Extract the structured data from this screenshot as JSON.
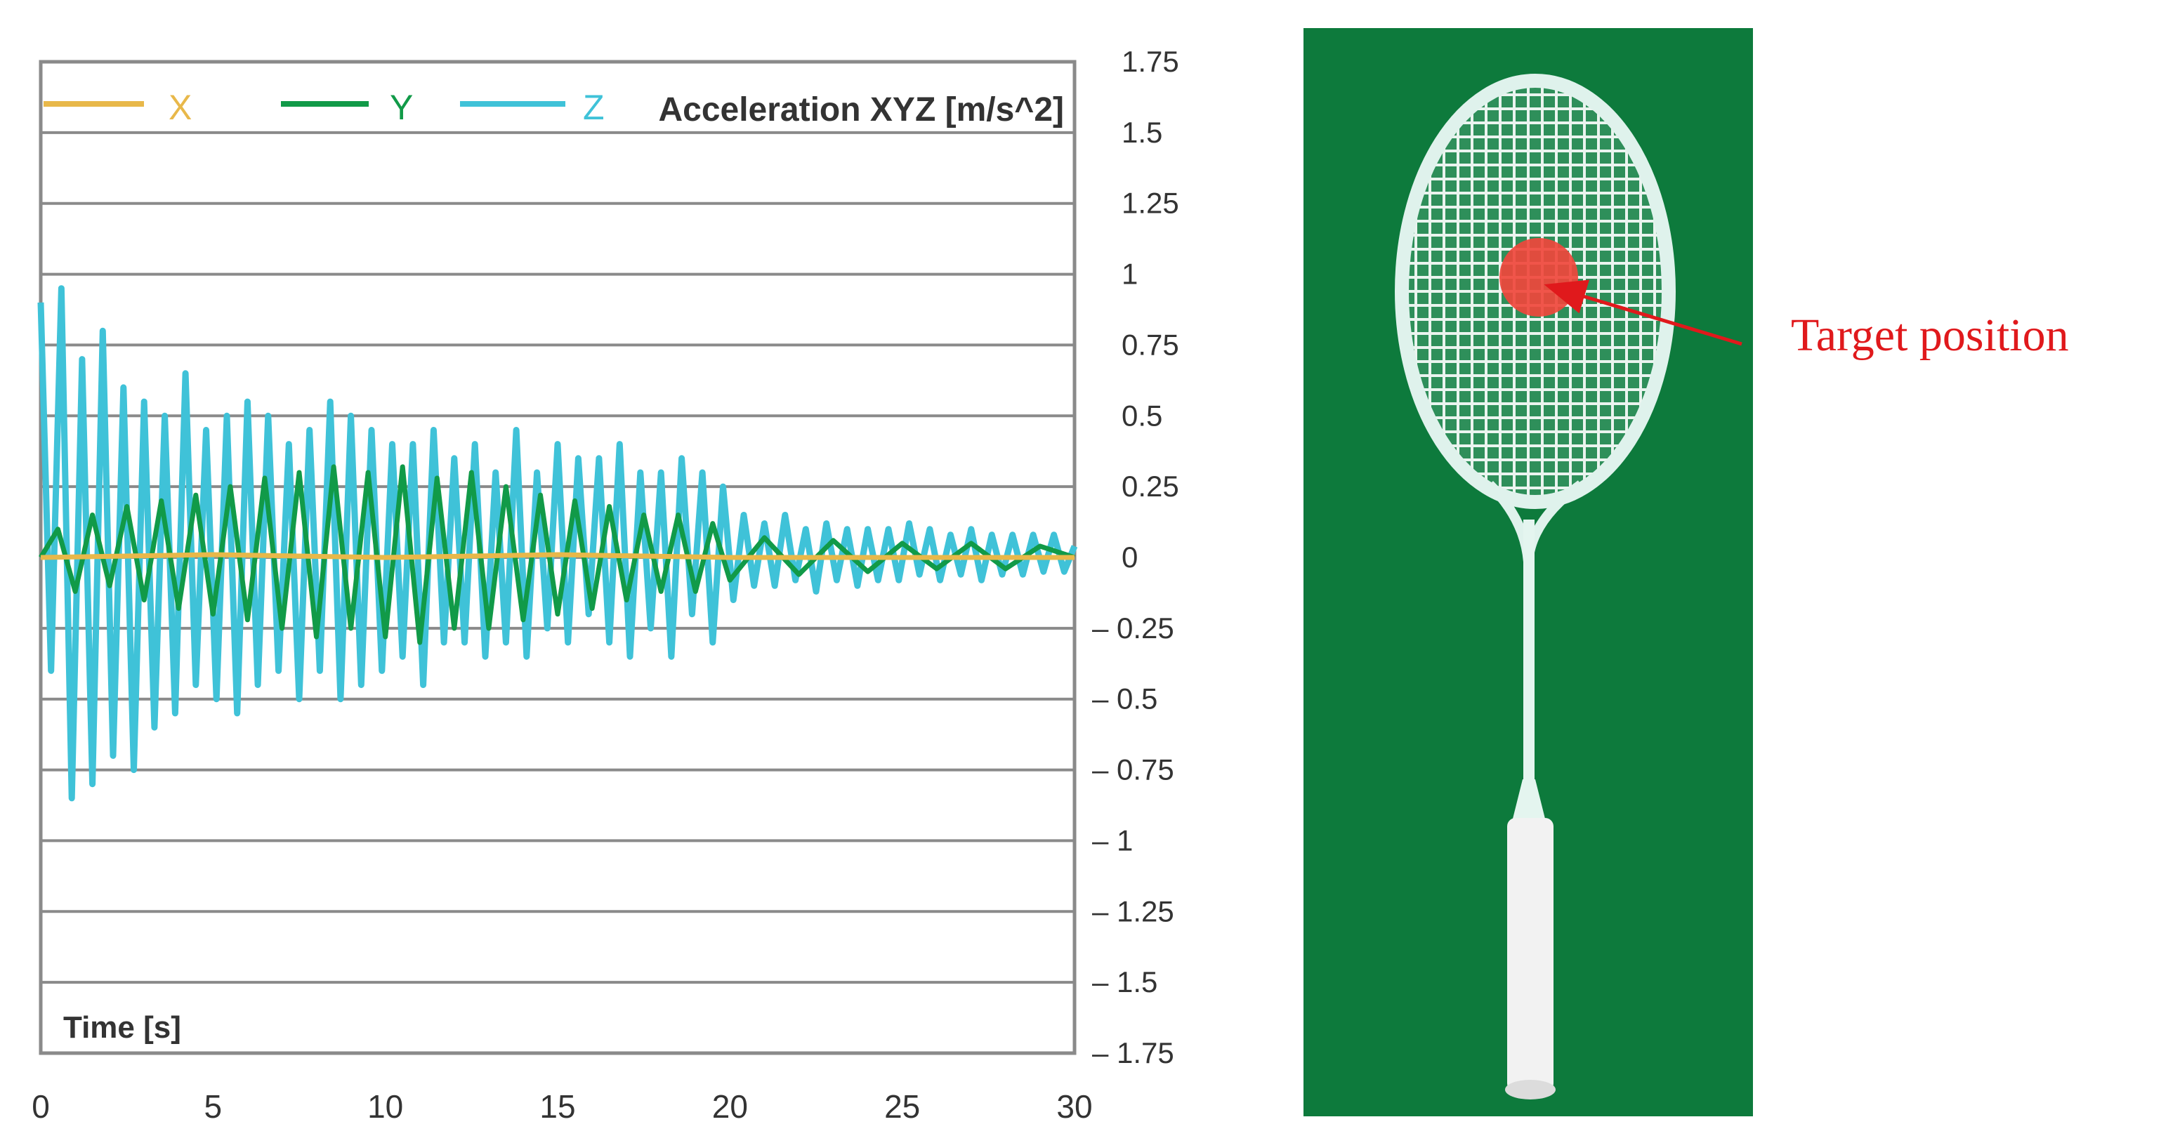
{
  "chart_data": {
    "type": "line",
    "title": "Acceleration XYZ [m/s^2]",
    "xlabel": "Time [s]",
    "ylabel": "",
    "xlim": [
      0,
      30
    ],
    "ylim": [
      -1.75,
      1.75
    ],
    "x_ticks": [
      "0",
      "5",
      "10",
      "15",
      "20",
      "25",
      "30"
    ],
    "y_ticks": [
      "1.75",
      "1.5",
      "1.25",
      "1",
      "0.75",
      "0.5",
      "0.25",
      "0",
      "– 0.25",
      "– 0.5",
      "– 0.75",
      "– 1",
      "– 1.25",
      "– 1.5",
      "– 1.75"
    ],
    "grid": true,
    "legend_position": "top",
    "series": [
      {
        "name": "X",
        "color": "#e8b84a",
        "x": [
          0,
          5,
          10,
          15,
          20,
          25,
          30
        ],
        "values": [
          0.0,
          0.01,
          0.0,
          0.01,
          0.0,
          0.0,
          0.0
        ]
      },
      {
        "name": "Y",
        "color": "#119a48",
        "x": [
          0,
          0.5,
          1.0,
          1.5,
          2.0,
          2.5,
          3.0,
          3.5,
          4.0,
          4.5,
          5.0,
          5.5,
          6.0,
          6.5,
          7.0,
          7.5,
          8.0,
          8.5,
          9.0,
          9.5,
          10.0,
          10.5,
          11.0,
          11.5,
          12.0,
          12.5,
          13.0,
          13.5,
          14.0,
          14.5,
          15.0,
          15.5,
          16.0,
          16.5,
          17.0,
          17.5,
          18.0,
          18.5,
          19.0,
          19.5,
          20.0,
          21.0,
          22.0,
          23.0,
          24.0,
          25.0,
          26.0,
          27.0,
          28.0,
          29.0,
          30.0
        ],
        "values": [
          0.0,
          0.1,
          -0.12,
          0.15,
          -0.1,
          0.18,
          -0.15,
          0.2,
          -0.18,
          0.22,
          -0.2,
          0.25,
          -0.22,
          0.28,
          -0.25,
          0.3,
          -0.28,
          0.32,
          -0.25,
          0.3,
          -0.28,
          0.32,
          -0.3,
          0.28,
          -0.25,
          0.3,
          -0.25,
          0.25,
          -0.22,
          0.22,
          -0.2,
          0.2,
          -0.18,
          0.18,
          -0.15,
          0.15,
          -0.12,
          0.15,
          -0.12,
          0.12,
          -0.08,
          0.07,
          -0.06,
          0.06,
          -0.05,
          0.05,
          -0.04,
          0.05,
          -0.04,
          0.04,
          0.0
        ]
      },
      {
        "name": "Z",
        "color": "#3fc2d8",
        "x": [
          0,
          0.3,
          0.6,
          0.9,
          1.2,
          1.5,
          1.8,
          2.1,
          2.4,
          2.7,
          3.0,
          3.3,
          3.6,
          3.9,
          4.2,
          4.5,
          4.8,
          5.1,
          5.4,
          5.7,
          6.0,
          6.3,
          6.6,
          6.9,
          7.2,
          7.5,
          7.8,
          8.1,
          8.4,
          8.7,
          9.0,
          9.3,
          9.6,
          9.9,
          10.2,
          10.5,
          10.8,
          11.1,
          11.4,
          11.7,
          12.0,
          12.3,
          12.6,
          12.9,
          13.2,
          13.5,
          13.8,
          14.1,
          14.4,
          14.7,
          15.0,
          15.3,
          15.6,
          15.9,
          16.2,
          16.5,
          16.8,
          17.1,
          17.4,
          17.7,
          18.0,
          18.3,
          18.6,
          18.9,
          19.2,
          19.5,
          19.8,
          20.1,
          20.4,
          20.7,
          21.0,
          21.3,
          21.6,
          21.9,
          22.2,
          22.5,
          22.8,
          23.1,
          23.4,
          23.7,
          24.0,
          24.3,
          24.6,
          24.9,
          25.2,
          25.5,
          25.8,
          26.1,
          26.4,
          26.7,
          27.0,
          27.3,
          27.6,
          27.9,
          28.2,
          28.5,
          28.8,
          29.1,
          29.4,
          29.7,
          30.0
        ],
        "values": [
          0.9,
          -0.4,
          0.95,
          -0.85,
          0.7,
          -0.8,
          0.8,
          -0.7,
          0.6,
          -0.75,
          0.55,
          -0.6,
          0.5,
          -0.55,
          0.65,
          -0.45,
          0.45,
          -0.5,
          0.5,
          -0.55,
          0.55,
          -0.45,
          0.5,
          -0.4,
          0.4,
          -0.5,
          0.45,
          -0.4,
          0.55,
          -0.5,
          0.5,
          -0.45,
          0.45,
          -0.4,
          0.4,
          -0.35,
          0.4,
          -0.45,
          0.45,
          -0.3,
          0.35,
          -0.3,
          0.4,
          -0.35,
          0.3,
          -0.3,
          0.45,
          -0.35,
          0.3,
          -0.25,
          0.4,
          -0.3,
          0.35,
          -0.2,
          0.35,
          -0.3,
          0.4,
          -0.35,
          0.3,
          -0.25,
          0.3,
          -0.35,
          0.35,
          -0.2,
          0.3,
          -0.3,
          0.25,
          -0.15,
          0.15,
          -0.1,
          0.12,
          -0.1,
          0.15,
          -0.08,
          0.1,
          -0.12,
          0.12,
          -0.08,
          0.1,
          -0.1,
          0.1,
          -0.08,
          0.1,
          -0.08,
          0.12,
          -0.06,
          0.1,
          -0.08,
          0.08,
          -0.06,
          0.1,
          -0.08,
          0.08,
          -0.06,
          0.08,
          -0.06,
          0.08,
          -0.05,
          0.08,
          -0.05,
          0.04
        ]
      }
    ]
  },
  "photo": {
    "annotation": "Target position",
    "background_color": "#0d7a3c",
    "target_color": "#f0463c",
    "arrow_color": "#e0191c"
  }
}
